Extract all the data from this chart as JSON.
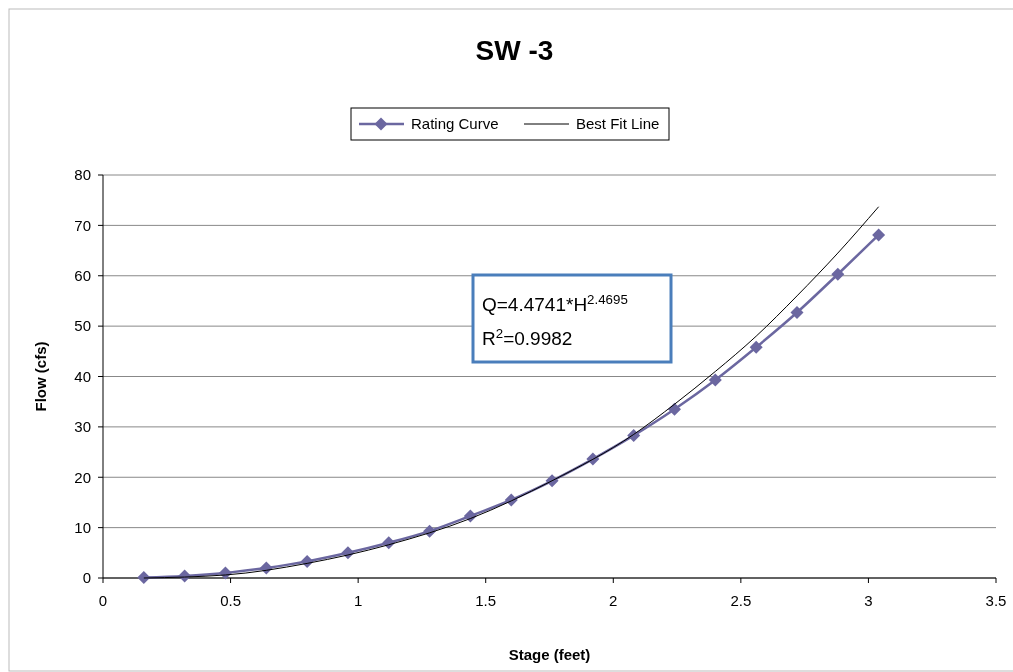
{
  "chart_data": {
    "type": "line",
    "title": "SW -3",
    "xlabel": "Stage (feet)",
    "ylabel": "Flow (cfs)",
    "x": [
      0.16,
      0.32,
      0.48,
      0.64,
      0.8,
      0.96,
      1.12,
      1.28,
      1.44,
      1.6,
      1.76,
      1.92,
      2.08,
      2.24,
      2.4,
      2.56,
      2.72,
      2.88,
      3.04
    ],
    "series": [
      {
        "name": "Rating Curve",
        "color": "#6b67a0",
        "marker": "diamond",
        "values": [
          0.1,
          0.4,
          1.0,
          2.0,
          3.3,
          5.0,
          7.0,
          9.3,
          12.3,
          15.5,
          19.3,
          23.6,
          28.3,
          33.5,
          39.3,
          45.8,
          52.7,
          60.3,
          68.1
        ]
      },
      {
        "name": "Best Fit Line",
        "color": "#000000",
        "marker": "none",
        "x": [
          0.16,
          0.48,
          0.8,
          1.12,
          1.44,
          1.76,
          2.08,
          2.24,
          2.4,
          2.56,
          2.72,
          2.88,
          3.04
        ],
        "values": [
          0.0,
          0.6,
          2.9,
          6.6,
          11.8,
          19.3,
          28.5,
          34.5,
          41.0,
          48.0,
          56.0,
          64.5,
          73.7
        ]
      }
    ],
    "xlim": [
      0,
      3.5
    ],
    "xticks": [
      0,
      0.5,
      1,
      1.5,
      2,
      2.5,
      3,
      3.5
    ],
    "ylim": [
      0,
      80
    ],
    "yticks": [
      0,
      10,
      20,
      30,
      40,
      50,
      60,
      70,
      80
    ],
    "grid": "y",
    "legend": "top",
    "annotations": [
      "Q=4.4741*H$^{2.4695}$",
      "R$^{2}$=0.9982"
    ]
  }
}
